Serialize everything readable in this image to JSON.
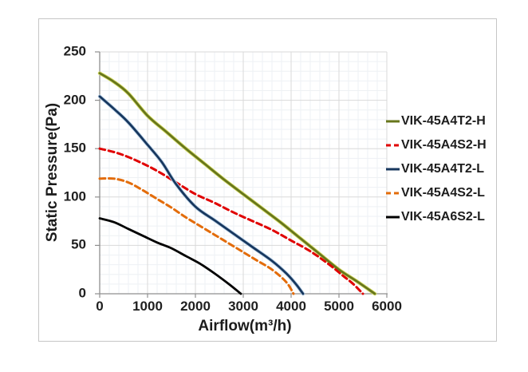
{
  "chart_data": {
    "type": "line",
    "title": "",
    "xlabel": "Airflow(m³/h)",
    "ylabel": "Static Pressure(Pa)",
    "xlim": [
      0,
      6000
    ],
    "ylim": [
      0,
      250
    ],
    "x_ticks": [
      "0",
      "1000",
      "2000",
      "3000",
      "4000",
      "5000",
      "6000"
    ],
    "y_ticks": [
      "0",
      "50",
      "100",
      "150",
      "200",
      "250"
    ],
    "x_minor_step": 200,
    "y_minor_step": 10,
    "grid": "major+minor",
    "legend_position": "right",
    "colors": {
      "minor_grid": "#eef1f4",
      "major_grid": "#d9d9d9",
      "axis_line": "#8f8f8f",
      "text": "#1c1c1c"
    },
    "series": [
      {
        "name": "VIK-45A4T2-H",
        "color": "#67761b",
        "halo": "#d8de6c",
        "style": "solid",
        "points": [
          [
            0,
            228
          ],
          [
            300,
            219
          ],
          [
            600,
            207
          ],
          [
            1000,
            184
          ],
          [
            1400,
            167
          ],
          [
            1800,
            150
          ],
          [
            2200,
            134
          ],
          [
            2600,
            118
          ],
          [
            3000,
            103
          ],
          [
            3400,
            88
          ],
          [
            3800,
            73
          ],
          [
            4200,
            57
          ],
          [
            4600,
            41
          ],
          [
            5000,
            25
          ],
          [
            5400,
            12
          ],
          [
            5750,
            0
          ]
        ]
      },
      {
        "name": "VIK-45A4S2-H",
        "color": "#e00000",
        "halo": "",
        "style": "dashed",
        "points": [
          [
            0,
            150
          ],
          [
            400,
            145
          ],
          [
            800,
            137
          ],
          [
            1200,
            127
          ],
          [
            1600,
            115
          ],
          [
            2000,
            103
          ],
          [
            2400,
            94
          ],
          [
            2800,
            84
          ],
          [
            3200,
            75
          ],
          [
            3600,
            66
          ],
          [
            4000,
            55
          ],
          [
            4400,
            44
          ],
          [
            4800,
            30
          ],
          [
            5100,
            18
          ],
          [
            5300,
            10
          ],
          [
            5500,
            0
          ]
        ]
      },
      {
        "name": "VIK-45A4T2-L",
        "color": "#17375e",
        "halo": "#bdd3e8",
        "style": "solid",
        "points": [
          [
            0,
            204
          ],
          [
            300,
            191
          ],
          [
            600,
            177
          ],
          [
            1000,
            154
          ],
          [
            1300,
            136
          ],
          [
            1600,
            113
          ],
          [
            2000,
            90
          ],
          [
            2400,
            76
          ],
          [
            2800,
            62
          ],
          [
            3200,
            48
          ],
          [
            3600,
            34
          ],
          [
            3900,
            21
          ],
          [
            4100,
            10
          ],
          [
            4250,
            0
          ]
        ]
      },
      {
        "name": "VIK-45A4S2-L",
        "color": "#e36c0a",
        "halo": "",
        "style": "dashed",
        "points": [
          [
            0,
            119
          ],
          [
            300,
            119
          ],
          [
            600,
            115
          ],
          [
            900,
            107
          ],
          [
            1200,
            98
          ],
          [
            1500,
            89
          ],
          [
            1800,
            79
          ],
          [
            2100,
            70
          ],
          [
            2400,
            61
          ],
          [
            2700,
            52
          ],
          [
            3000,
            43
          ],
          [
            3300,
            34
          ],
          [
            3600,
            25
          ],
          [
            3900,
            12
          ],
          [
            4050,
            0
          ]
        ]
      },
      {
        "name": "VIK-45A6S2-L",
        "color": "#000000",
        "halo": "",
        "style": "solid",
        "points": [
          [
            0,
            78
          ],
          [
            300,
            74
          ],
          [
            600,
            67
          ],
          [
            900,
            60
          ],
          [
            1200,
            53
          ],
          [
            1500,
            47
          ],
          [
            1800,
            39
          ],
          [
            2100,
            31
          ],
          [
            2400,
            21
          ],
          [
            2700,
            10
          ],
          [
            2950,
            0
          ]
        ]
      }
    ]
  }
}
